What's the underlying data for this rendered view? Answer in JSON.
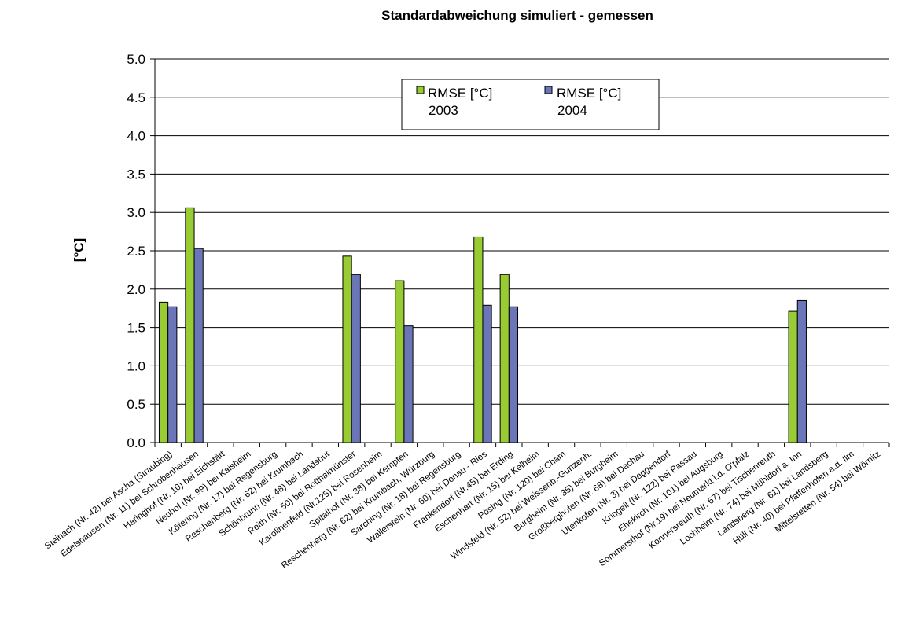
{
  "chart_data": {
    "type": "bar",
    "title": "Standardabweichung simuliert - gemessen",
    "xlabel": "",
    "ylabel": "[°C]",
    "ylim": [
      0,
      5
    ],
    "yticks": [
      "0.0",
      "0.5",
      "1.0",
      "1.5",
      "2.0",
      "2.5",
      "3.0",
      "3.5",
      "4.0",
      "4.5",
      "5.0"
    ],
    "grid": "horizontal",
    "legend_position": "top-center",
    "categories": [
      "Steinach (Nr. 42) bei Ascha (Straubing)",
      "Edelshausen (Nr. 11) bei Schrobenhausen",
      "Häringhof (Nr. 10) bei Eichstätt",
      "Neuhof (Nr. 99) bei Kaisheim",
      "Köfering (Nr. 17) bei Regensburg",
      "Reschenberg (Nr. 62) bei Krumbach",
      "Schönbrunn (Nr. 48) bei Landshut",
      "Reith (Nr. 50) bei Rotthalmünster",
      "Karolinenfeld (Nr.125) bei Rosenheim",
      "Spitalhof (Nr. 38) bei Kempten",
      "Reschenberg (Nr. 62) bei Krumbach, Würzburg",
      "Sarching (Nr. 18) bei Regensburg",
      "Wallerstein (Nr. 60) bei Donau - Ries",
      "Frankendorf (Nr.45) bei Erding",
      "Eschenhart (Nr. 15) bei Kelheim",
      "Pösing (Nr. 120) bei Cham",
      "Windsfeld (Nr. 52) bei Weissenb.-Gunzenh.",
      "Burgheim (Nr. 35) bei Burgheim",
      "Großberghofen (Nr. 68) bei Dachau",
      "Utenkofen (Nr. 3) bei Deggendorf",
      "Kringell (Nr. 122) bei Passau",
      "Ehekirch (Nr. 101) bei Augsburg",
      "Sommersthof (Nr.19) bei Neumarkt i.d. O'pfalz",
      "Konnersreuth (Nr. 67) bei Tischenreuth",
      "Lochheim (Nr. 74) bei Mühldorf a. Inn",
      "Landsberg (Nr. 61) bei Landsberg",
      "Hüll (Nr. 40) bei Pfaffenhofen a.d. Ilm",
      "Mittelstetten (Nr. 54) bei Wörnitz"
    ],
    "series": [
      {
        "name": "RMSE [°C] 2003",
        "name_lines": [
          "RMSE [°C]",
          "2003"
        ],
        "color": "#99cc33",
        "values": [
          1.83,
          3.06,
          null,
          null,
          null,
          null,
          null,
          2.43,
          null,
          2.11,
          null,
          null,
          2.68,
          2.19,
          null,
          null,
          null,
          null,
          null,
          null,
          null,
          null,
          null,
          null,
          1.71,
          null,
          null,
          null
        ]
      },
      {
        "name": "RMSE [°C] 2004",
        "name_lines": [
          "RMSE [°C]",
          "2004"
        ],
        "color": "#6b76b8",
        "values": [
          1.77,
          2.53,
          null,
          null,
          null,
          null,
          null,
          2.19,
          null,
          1.52,
          null,
          null,
          1.79,
          1.77,
          null,
          null,
          null,
          null,
          null,
          null,
          null,
          null,
          null,
          null,
          1.85,
          null,
          null,
          null
        ]
      }
    ]
  }
}
